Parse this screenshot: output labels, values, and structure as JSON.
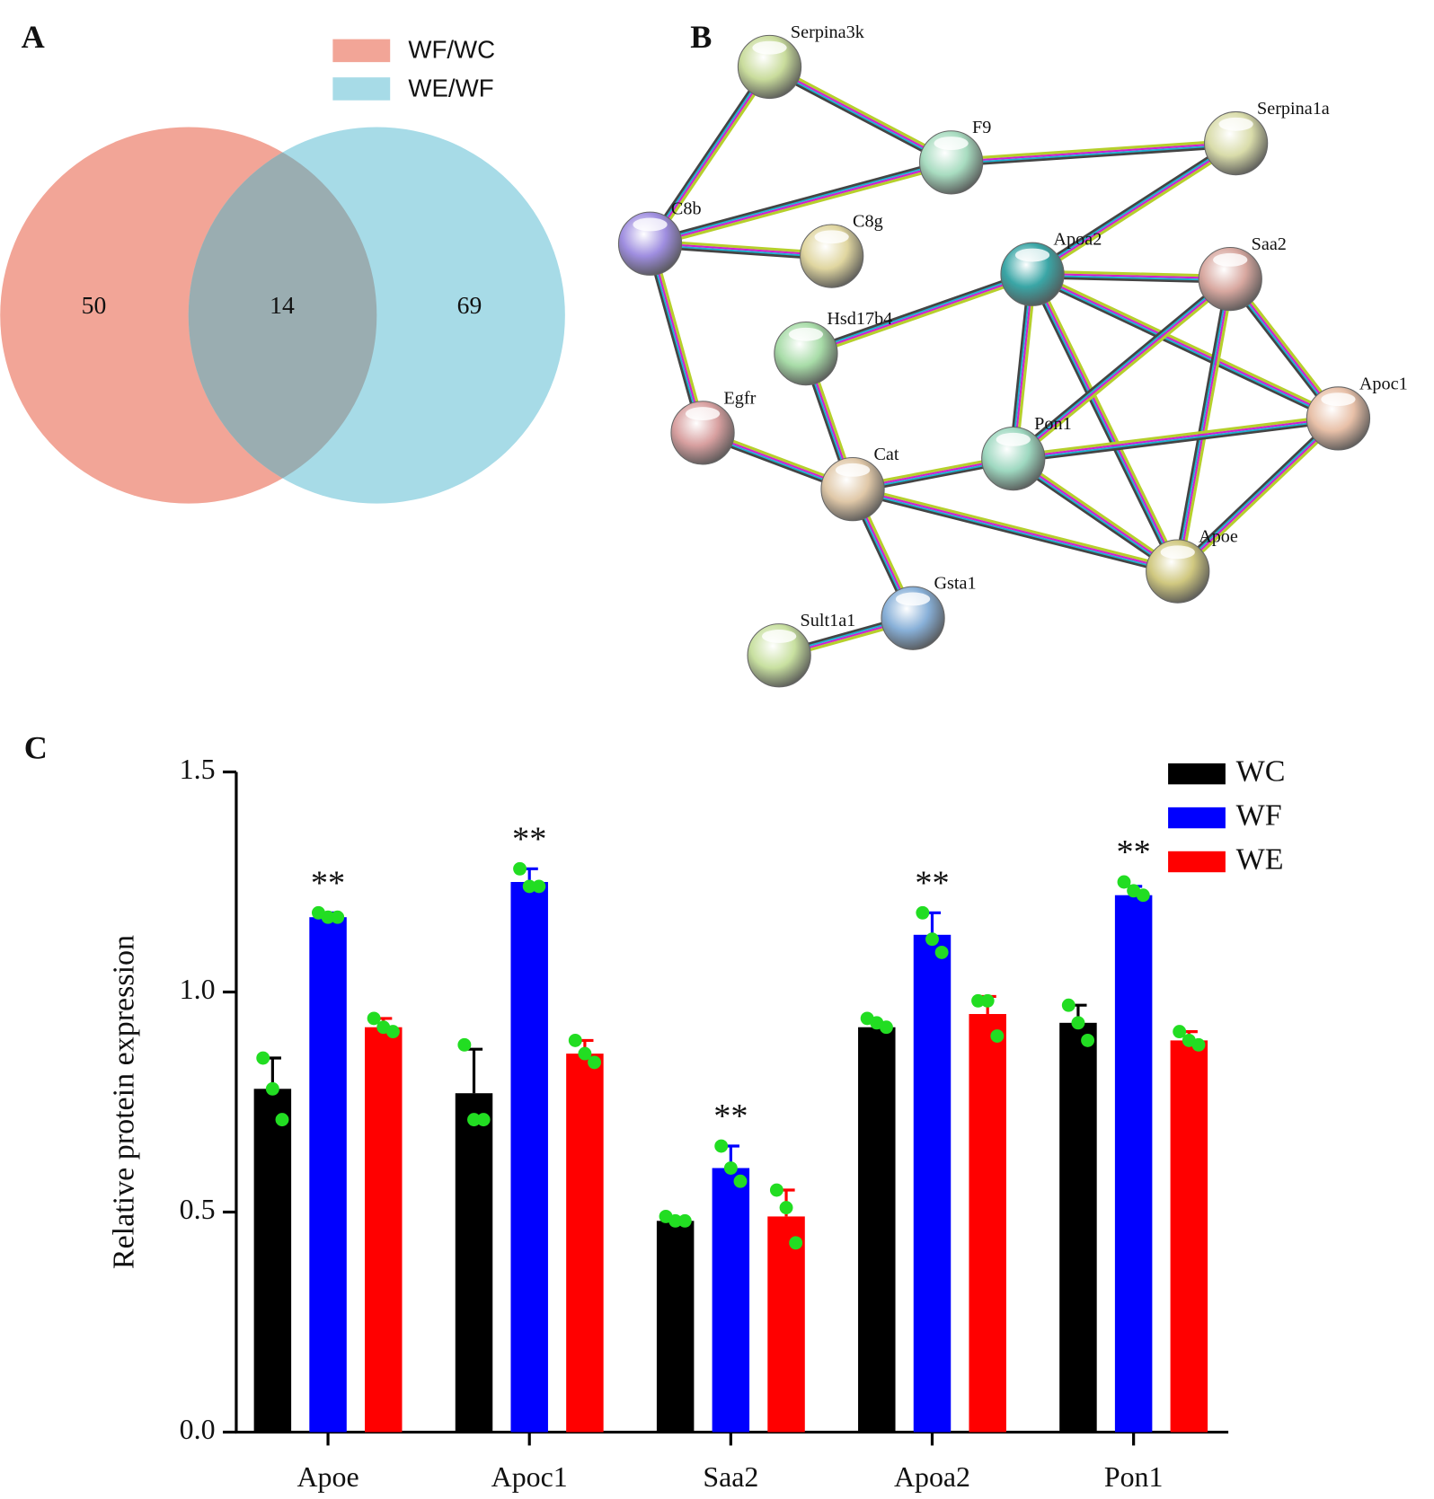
{
  "chart_data": [
    {
      "type": "venn",
      "panel_label": "A",
      "sets": [
        {
          "name": "WF/WC",
          "color": "#f2a597"
        },
        {
          "name": "WE/WF",
          "color": "#a7dbe7"
        }
      ],
      "overlap_color": "#9aadb1",
      "values": [
        50,
        14,
        69
      ]
    },
    {
      "type": "network",
      "panel_label": "B",
      "nodes": [
        {
          "label": "Serpina3k",
          "color": "#c9dc9c"
        },
        {
          "label": "F9",
          "color": "#a8dcc0"
        },
        {
          "label": "Serpina1a",
          "color": "#d9dcaa"
        },
        {
          "label": "C8b",
          "color": "#9f8ee0"
        },
        {
          "label": "C8g",
          "color": "#e0d6a0"
        },
        {
          "label": "Apoa2",
          "color": "#3aa6a6"
        },
        {
          "label": "Saa2",
          "color": "#d8a8a0"
        },
        {
          "label": "Hsd17b4",
          "color": "#a8dca8"
        },
        {
          "label": "Egfr",
          "color": "#d8a0a0"
        },
        {
          "label": "Pon1",
          "color": "#9ed8c0"
        },
        {
          "label": "Apoc1",
          "color": "#e8c0a8"
        },
        {
          "label": "Cat",
          "color": "#e0c8a8"
        },
        {
          "label": "Apoe",
          "color": "#d0c880"
        },
        {
          "label": "Gsta1",
          "color": "#88b0d8"
        },
        {
          "label": "Sult1a1",
          "color": "#c8e0a0"
        }
      ],
      "edges": [
        [
          0,
          1
        ],
        [
          0,
          3
        ],
        [
          1,
          2
        ],
        [
          1,
          3
        ],
        [
          3,
          4
        ],
        [
          3,
          8
        ],
        [
          2,
          5
        ],
        [
          5,
          7
        ],
        [
          5,
          6
        ],
        [
          5,
          9
        ],
        [
          5,
          10
        ],
        [
          5,
          12
        ],
        [
          6,
          9
        ],
        [
          6,
          12
        ],
        [
          6,
          10
        ],
        [
          9,
          10
        ],
        [
          9,
          12
        ],
        [
          10,
          12
        ],
        [
          11,
          9
        ],
        [
          11,
          12
        ],
        [
          8,
          11
        ],
        [
          7,
          11
        ],
        [
          11,
          13
        ],
        [
          13,
          14
        ]
      ]
    },
    {
      "type": "bar",
      "panel_label": "C",
      "y_label": "Relative protein expression",
      "categories": [
        "Apoe",
        "Apoc1",
        "Saa2",
        "Apoa2",
        "Pon1"
      ],
      "series": [
        {
          "name": "WC",
          "color": "#000000",
          "values": [
            0.78,
            0.77,
            0.48,
            0.92,
            0.93
          ],
          "errors": [
            0.07,
            0.1,
            0.005,
            0.01,
            0.04
          ],
          "points": [
            [
              0.85,
              0.78,
              0.71
            ],
            [
              0.88,
              0.71,
              0.71
            ],
            [
              0.49,
              0.48,
              0.48
            ],
            [
              0.94,
              0.93,
              0.92
            ],
            [
              0.97,
              0.93,
              0.89
            ]
          ]
        },
        {
          "name": "WF",
          "color": "#0000ff",
          "values": [
            1.17,
            1.25,
            0.6,
            1.13,
            1.22
          ],
          "errors": [
            0.01,
            0.03,
            0.05,
            0.05,
            0.02
          ],
          "points": [
            [
              1.18,
              1.17,
              1.17
            ],
            [
              1.28,
              1.24,
              1.24
            ],
            [
              0.65,
              0.6,
              0.57
            ],
            [
              1.18,
              1.12,
              1.09
            ],
            [
              1.25,
              1.23,
              1.22
            ]
          ],
          "significance": [
            "**",
            "**",
            "**",
            "**",
            "**"
          ]
        },
        {
          "name": "WE",
          "color": "#ff0000",
          "values": [
            0.92,
            0.86,
            0.49,
            0.95,
            0.89
          ],
          "errors": [
            0.02,
            0.03,
            0.06,
            0.04,
            0.02
          ],
          "points": [
            [
              0.94,
              0.92,
              0.91
            ],
            [
              0.89,
              0.86,
              0.84
            ],
            [
              0.55,
              0.51,
              0.43
            ],
            [
              0.98,
              0.98,
              0.9
            ],
            [
              0.91,
              0.89,
              0.88
            ]
          ]
        }
      ],
      "point_color": "#22dd22",
      "ylim": [
        0,
        1.5
      ],
      "yticks": [
        {
          "value": 0,
          "label": "0.0"
        },
        0.5,
        {
          "value": 1,
          "label": "1.0"
        },
        1.5
      ],
      "legend": "upper right"
    }
  ]
}
